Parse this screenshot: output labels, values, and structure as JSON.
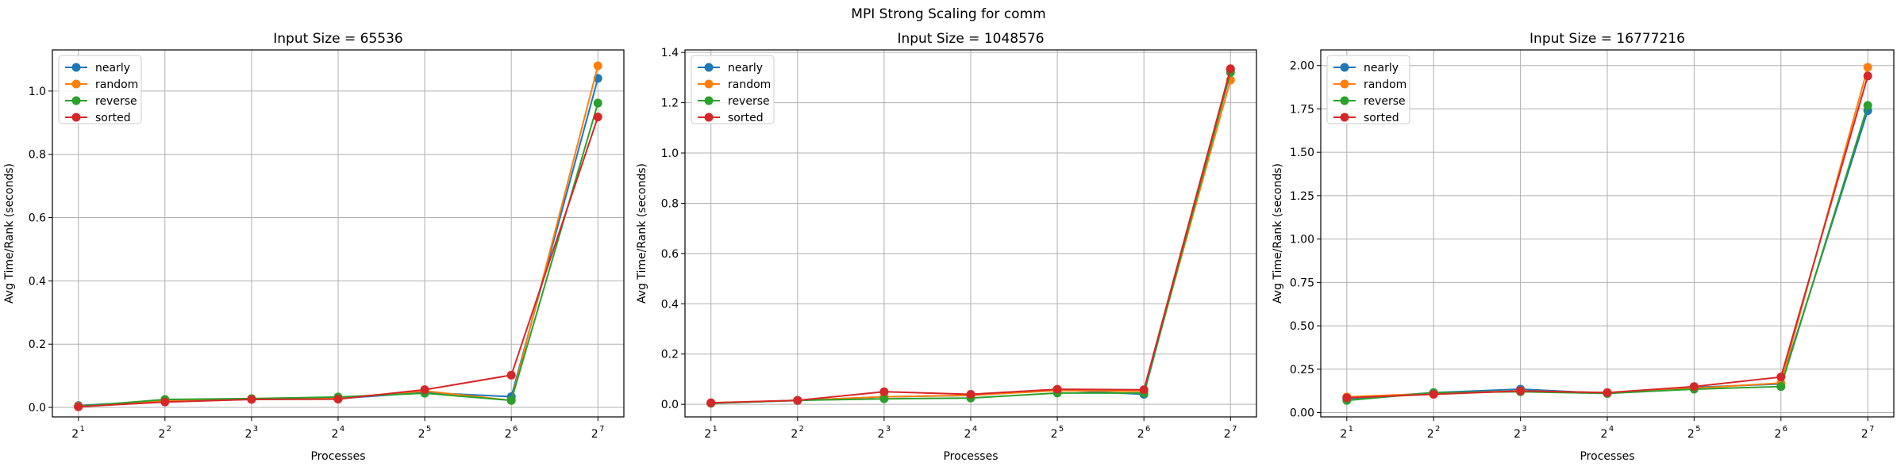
{
  "figure": {
    "suptitle": "MPI Strong Scaling for comm"
  },
  "colors": {
    "nearly": "#1f77b4",
    "random": "#ff7f0e",
    "reverse": "#2ca02c",
    "sorted": "#d62728"
  },
  "chart_data": [
    {
      "type": "line",
      "title": "Input Size = 65536",
      "xlabel": "Processes",
      "ylabel": "Avg Time/Rank (seconds)",
      "x": [
        2,
        4,
        8,
        16,
        32,
        64,
        128
      ],
      "x_tick_labels": [
        "2",
        "2",
        "2",
        "2",
        "2",
        "2",
        "2"
      ],
      "x_tick_exponents": [
        "1",
        "2",
        "3",
        "4",
        "5",
        "6",
        "7"
      ],
      "x_scale": "log2",
      "ylim": [
        -0.03,
        1.13
      ],
      "yticks": [
        0.0,
        0.2,
        0.4,
        0.6,
        0.8,
        1.0
      ],
      "ytick_labels": [
        "0.0",
        "0.2",
        "0.4",
        "0.6",
        "0.8",
        "1.0"
      ],
      "grid": true,
      "legend": "top-left",
      "series": [
        {
          "name": "nearly",
          "values": [
            0.006,
            0.021,
            0.026,
            0.028,
            0.047,
            0.034,
            1.04
          ]
        },
        {
          "name": "random",
          "values": [
            0.004,
            0.02,
            0.027,
            0.03,
            0.052,
            0.022,
            1.08
          ]
        },
        {
          "name": "reverse",
          "values": [
            0.003,
            0.025,
            0.028,
            0.033,
            0.045,
            0.022,
            0.962
          ]
        },
        {
          "name": "sorted",
          "values": [
            0.002,
            0.017,
            0.025,
            0.026,
            0.056,
            0.102,
            0.918
          ]
        }
      ]
    },
    {
      "type": "line",
      "title": "Input Size = 1048576",
      "xlabel": "Processes",
      "ylabel": "Avg Time/Rank (seconds)",
      "x": [
        2,
        4,
        8,
        16,
        32,
        64,
        128
      ],
      "x_tick_labels": [
        "2",
        "2",
        "2",
        "2",
        "2",
        "2",
        "2"
      ],
      "x_tick_exponents": [
        "1",
        "2",
        "3",
        "4",
        "5",
        "6",
        "7"
      ],
      "x_scale": "log2",
      "ylim": [
        -0.05,
        1.41
      ],
      "yticks": [
        0.0,
        0.2,
        0.4,
        0.6,
        0.8,
        1.0,
        1.2,
        1.4
      ],
      "ytick_labels": [
        "0.0",
        "0.2",
        "0.4",
        "0.6",
        "0.8",
        "1.0",
        "1.2",
        "1.4"
      ],
      "grid": true,
      "legend": "top-left",
      "series": [
        {
          "name": "nearly",
          "values": [
            0.005,
            0.015,
            0.03,
            0.035,
            0.058,
            0.04,
            1.33
          ]
        },
        {
          "name": "random",
          "values": [
            0.006,
            0.016,
            0.03,
            0.036,
            0.055,
            0.052,
            1.29
          ]
        },
        {
          "name": "reverse",
          "values": [
            0.004,
            0.016,
            0.022,
            0.025,
            0.045,
            0.045,
            1.32
          ]
        },
        {
          "name": "sorted",
          "values": [
            0.006,
            0.016,
            0.05,
            0.04,
            0.06,
            0.058,
            1.335
          ]
        }
      ]
    },
    {
      "type": "line",
      "title": "Input Size = 16777216",
      "xlabel": "Processes",
      "ylabel": "Avg Time/Rank (seconds)",
      "x": [
        2,
        4,
        8,
        16,
        32,
        64,
        128
      ],
      "x_tick_labels": [
        "2",
        "2",
        "2",
        "2",
        "2",
        "2",
        "2"
      ],
      "x_tick_exponents": [
        "1",
        "2",
        "3",
        "4",
        "5",
        "6",
        "7"
      ],
      "x_scale": "log2",
      "ylim": [
        -0.025,
        2.09
      ],
      "yticks": [
        0.0,
        0.25,
        0.5,
        0.75,
        1.0,
        1.25,
        1.5,
        1.75,
        2.0
      ],
      "ytick_labels": [
        "0.00",
        "0.25",
        "0.50",
        "0.75",
        "1.00",
        "1.25",
        "1.50",
        "1.75",
        "2.00"
      ],
      "grid": true,
      "legend": "top-left",
      "series": [
        {
          "name": "nearly",
          "values": [
            0.08,
            0.115,
            0.135,
            0.11,
            0.145,
            0.165,
            1.74
          ]
        },
        {
          "name": "random",
          "values": [
            0.09,
            0.11,
            0.125,
            0.115,
            0.14,
            0.17,
            1.99
          ]
        },
        {
          "name": "reverse",
          "values": [
            0.07,
            0.115,
            0.12,
            0.11,
            0.135,
            0.15,
            1.77
          ]
        },
        {
          "name": "sorted",
          "values": [
            0.085,
            0.105,
            0.125,
            0.115,
            0.15,
            0.205,
            1.94
          ]
        }
      ]
    }
  ]
}
